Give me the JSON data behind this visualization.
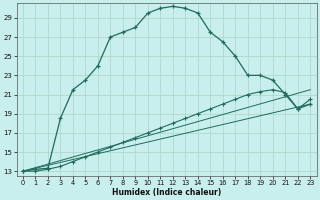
{
  "xlabel": "Humidex (Indice chaleur)",
  "bg_color": "#c8eeed",
  "grid_color": "#b0d8cc",
  "line_color": "#206b5e",
  "xlim": [
    -0.5,
    23.5
  ],
  "ylim": [
    12.5,
    30.5
  ],
  "yticks": [
    13,
    15,
    17,
    19,
    21,
    23,
    25,
    27,
    29
  ],
  "xticks": [
    0,
    1,
    2,
    3,
    4,
    5,
    6,
    7,
    8,
    9,
    10,
    11,
    12,
    13,
    14,
    15,
    16,
    17,
    18,
    19,
    20,
    21,
    22,
    23
  ],
  "series1_x": [
    0,
    1,
    2,
    3,
    4,
    5,
    6,
    7,
    8,
    9,
    10,
    11,
    12,
    13,
    14,
    15,
    16,
    17,
    18,
    19,
    20,
    21,
    22,
    23
  ],
  "series1_y": [
    13.0,
    13.2,
    13.3,
    18.5,
    21.5,
    22.5,
    24.0,
    27.0,
    27.5,
    28.0,
    29.5,
    30.0,
    30.2,
    30.0,
    29.5,
    27.5,
    26.5,
    25.0,
    23.0,
    23.0,
    22.5,
    21.0,
    19.5,
    20.0
  ],
  "series2_x": [
    0,
    1,
    2,
    3,
    4,
    5,
    6,
    7,
    8,
    9,
    10,
    11,
    12,
    13,
    14,
    15,
    16,
    17,
    18,
    19,
    20,
    21,
    22,
    23
  ],
  "series2_y": [
    13.0,
    13.0,
    13.2,
    13.5,
    14.0,
    14.5,
    15.0,
    15.5,
    16.0,
    16.5,
    17.0,
    17.5,
    18.0,
    18.5,
    19.0,
    19.5,
    20.0,
    20.5,
    21.0,
    21.3,
    21.5,
    21.2,
    19.5,
    20.5
  ],
  "series3_x": [
    0,
    23
  ],
  "series3_y": [
    13.0,
    20.0
  ],
  "series4_x": [
    0,
    23
  ],
  "series4_y": [
    13.0,
    21.5
  ]
}
